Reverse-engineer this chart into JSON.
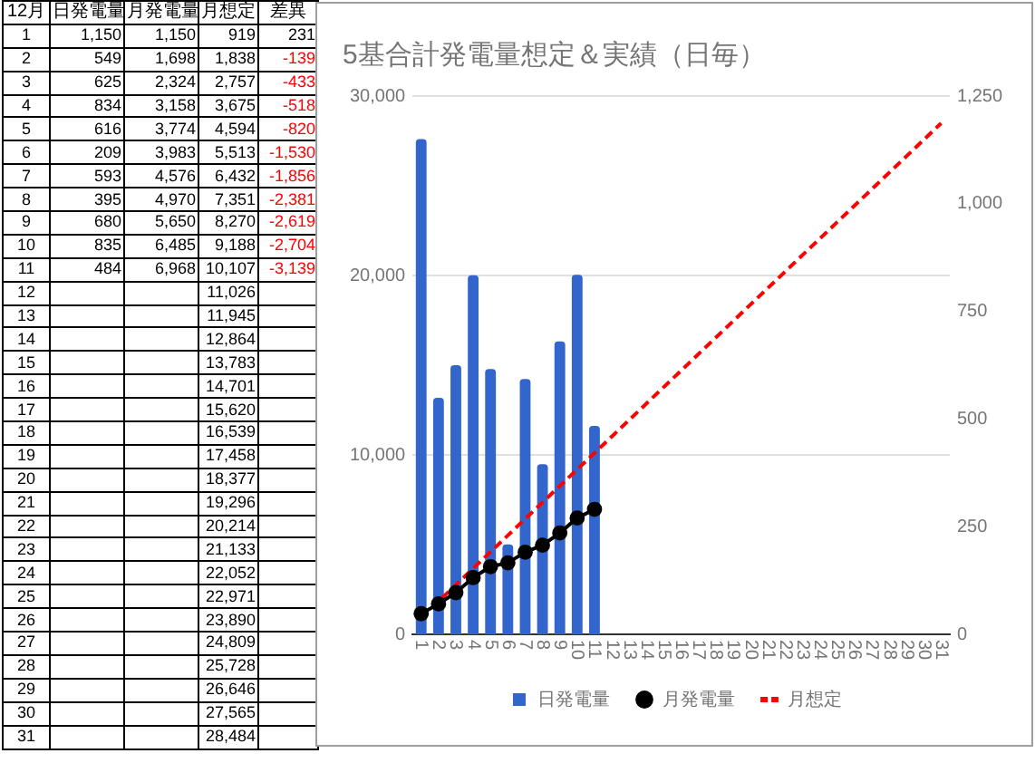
{
  "chart_data": [
    {
      "type": "heatmap",
      "ylabel": "12月",
      "categories": [
        "日発電量",
        "月発電量",
        "月想定",
        "差異"
      ],
      "y_categories": [
        "1",
        "2",
        "3",
        "4",
        "5",
        "6",
        "7",
        "8",
        "9",
        "10",
        "11",
        "12",
        "13",
        "14",
        "15",
        "16",
        "17",
        "18",
        "19",
        "20",
        "21",
        "22",
        "23",
        "24",
        "25",
        "26",
        "27",
        "28",
        "29",
        "30",
        "31"
      ],
      "cells": [
        [
          1150,
          1150,
          919,
          231
        ],
        [
          549,
          1698,
          1838,
          -139
        ],
        [
          625,
          2324,
          2757,
          -433
        ],
        [
          834,
          3158,
          3675,
          -518
        ],
        [
          616,
          3774,
          4594,
          -820
        ],
        [
          209,
          3983,
          5513,
          -1530
        ],
        [
          593,
          4576,
          6432,
          -1856
        ],
        [
          395,
          4970,
          7351,
          -2381
        ],
        [
          680,
          5650,
          8270,
          -2619
        ],
        [
          835,
          6485,
          9188,
          -2704
        ],
        [
          484,
          6968,
          10107,
          -3139
        ],
        [
          null,
          null,
          11026,
          null
        ],
        [
          null,
          null,
          11945,
          null
        ],
        [
          null,
          null,
          12864,
          null
        ],
        [
          null,
          null,
          13783,
          null
        ],
        [
          null,
          null,
          14701,
          null
        ],
        [
          null,
          null,
          15620,
          null
        ],
        [
          null,
          null,
          16539,
          null
        ],
        [
          null,
          null,
          17458,
          null
        ],
        [
          null,
          null,
          18377,
          null
        ],
        [
          null,
          null,
          19296,
          null
        ],
        [
          null,
          null,
          20214,
          null
        ],
        [
          null,
          null,
          21133,
          null
        ],
        [
          null,
          null,
          22052,
          null
        ],
        [
          null,
          null,
          22971,
          null
        ],
        [
          null,
          null,
          23890,
          null
        ],
        [
          null,
          null,
          24809,
          null
        ],
        [
          null,
          null,
          25728,
          null
        ],
        [
          null,
          null,
          26646,
          null
        ],
        [
          null,
          null,
          27565,
          null
        ],
        [
          null,
          null,
          28484,
          null
        ]
      ],
      "cell_labels": [
        [
          "1,150",
          "1,150",
          "919",
          "231"
        ],
        [
          "549",
          "1,698",
          "1,838",
          "-139"
        ],
        [
          "625",
          "2,324",
          "2,757",
          "-433"
        ],
        [
          "834",
          "3,158",
          "3,675",
          "-518"
        ],
        [
          "616",
          "3,774",
          "4,594",
          "-820"
        ],
        [
          "209",
          "3,983",
          "5,513",
          "-1,530"
        ],
        [
          "593",
          "4,576",
          "6,432",
          "-1,856"
        ],
        [
          "395",
          "4,970",
          "7,351",
          "-2,381"
        ],
        [
          "680",
          "5,650",
          "8,270",
          "-2,619"
        ],
        [
          "835",
          "6,485",
          "9,188",
          "-2,704"
        ],
        [
          "484",
          "6,968",
          "10,107",
          "-3,139"
        ],
        [
          null,
          null,
          "11,026",
          null
        ],
        [
          null,
          null,
          "11,945",
          null
        ],
        [
          null,
          null,
          "12,864",
          null
        ],
        [
          null,
          null,
          "13,783",
          null
        ],
        [
          null,
          null,
          "14,701",
          null
        ],
        [
          null,
          null,
          "15,620",
          null
        ],
        [
          null,
          null,
          "16,539",
          null
        ],
        [
          null,
          null,
          "17,458",
          null
        ],
        [
          null,
          null,
          "18,377",
          null
        ],
        [
          null,
          null,
          "19,296",
          null
        ],
        [
          null,
          null,
          "20,214",
          null
        ],
        [
          null,
          null,
          "21,133",
          null
        ],
        [
          null,
          null,
          "22,052",
          null
        ],
        [
          null,
          null,
          "22,971",
          null
        ],
        [
          null,
          null,
          "23,890",
          null
        ],
        [
          null,
          null,
          "24,809",
          null
        ],
        [
          null,
          null,
          "25,728",
          null
        ],
        [
          null,
          null,
          "26,646",
          null
        ],
        [
          null,
          null,
          "27,565",
          null
        ],
        [
          null,
          null,
          "28,484",
          null
        ]
      ]
    },
    {
      "type": "bar",
      "title": "5基合計発電量想定＆実績（日毎）",
      "categories": [
        "1",
        "2",
        "3",
        "4",
        "5",
        "6",
        "7",
        "8",
        "9",
        "10",
        "11",
        "12",
        "13",
        "14",
        "15",
        "16",
        "17",
        "18",
        "19",
        "20",
        "21",
        "22",
        "23",
        "24",
        "25",
        "26",
        "27",
        "28",
        "29",
        "30",
        "31"
      ],
      "series": [
        {
          "name": "日発電量",
          "type": "bar",
          "axis": "y2",
          "color": "#3366cc",
          "values": [
            1150,
            549,
            625,
            834,
            616,
            209,
            593,
            395,
            680,
            835,
            484,
            null,
            null,
            null,
            null,
            null,
            null,
            null,
            null,
            null,
            null,
            null,
            null,
            null,
            null,
            null,
            null,
            null,
            null,
            null,
            null
          ]
        },
        {
          "name": "月発電量",
          "type": "line",
          "marker": "circle",
          "line_style": "solid",
          "color": "#000000",
          "values": [
            1150,
            1698,
            2324,
            3158,
            3774,
            3983,
            4576,
            4970,
            5650,
            6485,
            6968,
            null,
            null,
            null,
            null,
            null,
            null,
            null,
            null,
            null,
            null,
            null,
            null,
            null,
            null,
            null,
            null,
            null,
            null,
            null,
            null
          ]
        },
        {
          "name": "月想定",
          "type": "line",
          "marker": "none",
          "line_style": "dashed",
          "color": "#ff0000",
          "values": [
            919,
            1838,
            2757,
            3675,
            4594,
            5513,
            6432,
            7351,
            8270,
            9188,
            10107,
            11026,
            11945,
            12864,
            13783,
            14701,
            15620,
            16539,
            17458,
            18377,
            19296,
            20214,
            21133,
            22052,
            22971,
            23890,
            24809,
            25728,
            26646,
            27565,
            28484
          ]
        }
      ],
      "ylim": [
        0,
        30000
      ],
      "yticks": [
        0,
        {
          "value": 10000,
          "label": "10,000"
        },
        {
          "value": 20000,
          "label": "20,000"
        },
        {
          "value": 30000,
          "label": "30,000"
        }
      ],
      "y2lim": [
        0,
        1250
      ],
      "y2ticks": [
        0,
        250,
        500,
        750,
        {
          "value": 1000,
          "label": "1,000"
        },
        {
          "value": 1250,
          "label": "1,250"
        }
      ],
      "grid": "y",
      "legend": "bottom"
    }
  ]
}
